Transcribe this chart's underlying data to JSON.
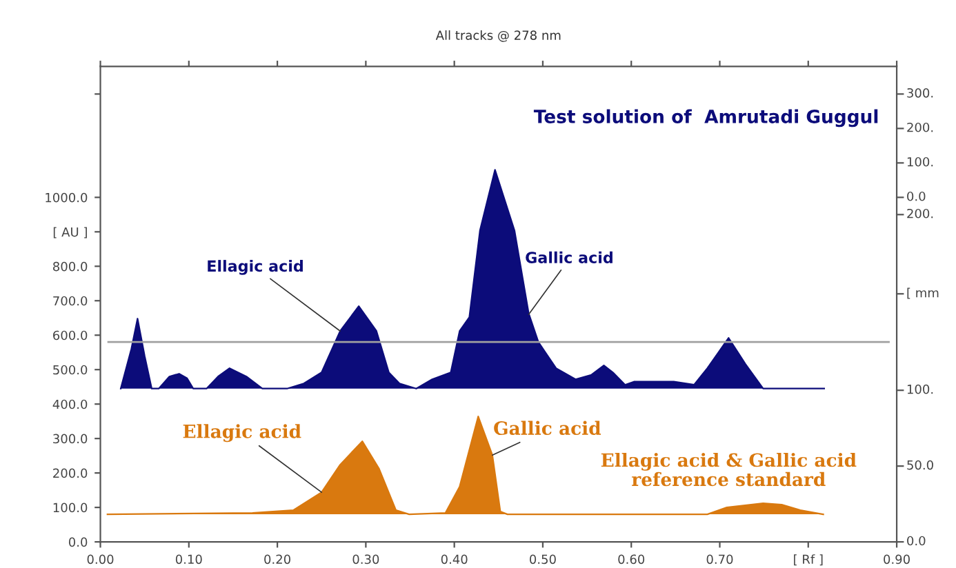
{
  "chart_data": {
    "type": "area",
    "title": "All tracks @ 278 nm",
    "series": [
      {
        "color": "#0c0c7a",
        "x": [
          0.023,
          0.035,
          0.042,
          0.05,
          0.058,
          0.066,
          0.078,
          0.089,
          0.098,
          0.105,
          0.12,
          0.133,
          0.146,
          0.165,
          0.183,
          0.211,
          0.23,
          0.25,
          0.271,
          0.292,
          0.312,
          0.326,
          0.338,
          0.357,
          0.375,
          0.396,
          0.406,
          0.417,
          0.429,
          0.446,
          0.468,
          0.484,
          0.495,
          0.515,
          0.537,
          0.555,
          0.569,
          0.58,
          0.593,
          0.603,
          0.648,
          0.671,
          0.686,
          0.71,
          0.729,
          0.749,
          0.818
        ],
        "values": [
          445,
          560,
          648,
          540,
          445,
          445,
          480,
          488,
          475,
          445,
          445,
          480,
          504,
          480,
          445,
          445,
          460,
          492,
          612,
          684,
          612,
          492,
          460,
          445,
          472,
          492,
          612,
          652,
          904,
          1080,
          904,
          664,
          580,
          504,
          472,
          485,
          512,
          490,
          456,
          465,
          465,
          456,
          504,
          592,
          516,
          445,
          445
        ]
      },
      {
        "color": "#d9790f",
        "x": [
          0.008,
          0.172,
          0.218,
          0.25,
          0.271,
          0.296,
          0.315,
          0.334,
          0.349,
          0.39,
          0.406,
          0.427,
          0.443,
          0.452,
          0.46,
          0.686,
          0.708,
          0.749,
          0.77,
          0.791,
          0.817
        ],
        "values": [
          80,
          84,
          92,
          144,
          224,
          292,
          212,
          92,
          80,
          84,
          160,
          364,
          252,
          88,
          80,
          80,
          100,
          112,
          108,
          92,
          80
        ]
      }
    ],
    "xlim": [
      0,
      0.9
    ],
    "xticks": [
      {
        "value": 0,
        "label": "0.00"
      },
      {
        "value": 0.1,
        "label": "0.10"
      },
      {
        "value": 0.2,
        "label": "0.20"
      },
      {
        "value": 0.3,
        "label": "0.30"
      },
      {
        "value": 0.4,
        "label": "0.40"
      },
      {
        "value": 0.5,
        "label": "0.50"
      },
      {
        "value": 0.6,
        "label": "0.60"
      },
      {
        "value": 0.7,
        "label": "0.70"
      },
      {
        "value": 0.8,
        "label": "[ Rf ]"
      },
      {
        "value": 0.9,
        "label": "0.90"
      }
    ],
    "ylim": [
      0,
      1380
    ],
    "yticks": [
      {
        "value": 0,
        "label": "0.0"
      },
      {
        "value": 100,
        "label": "100.0"
      },
      {
        "value": 200,
        "label": "200.0"
      },
      {
        "value": 300,
        "label": "300.0"
      },
      {
        "value": 400,
        "label": "400.0"
      },
      {
        "value": 500,
        "label": "500.0"
      },
      {
        "value": 600,
        "label": "600.0"
      },
      {
        "value": 700,
        "label": "700.0"
      },
      {
        "value": 800,
        "label": "800.0"
      },
      {
        "value": 900,
        "label": "[ AU ]"
      },
      {
        "value": 1000,
        "label": "1000.0"
      },
      {
        "value": 1300,
        "label": null
      }
    ],
    "ref_lines": [
      {
        "axis": "y",
        "value": 580,
        "color": "#a0a0a0"
      }
    ],
    "annotations": [
      "Test solution of  Amrutadi Guggul",
      {
        "text": "Ellagic acid",
        "x": 0.271,
        "y": 612
      },
      {
        "text": "Gallic acid",
        "x": 0.484,
        "y": 660
      },
      {
        "text": "Ellagic acid",
        "x": 0.25,
        "y": 144
      },
      {
        "text": "Gallic acid",
        "x": 0.443,
        "y": 252
      },
      "Ellagic acid & Gallic acid\nreference standard",
      "300.",
      "200.",
      "100.",
      "0.0",
      "200.",
      "[ mm",
      "100.",
      "50.0",
      "0.0"
    ],
    "grid": false,
    "legend": false
  }
}
